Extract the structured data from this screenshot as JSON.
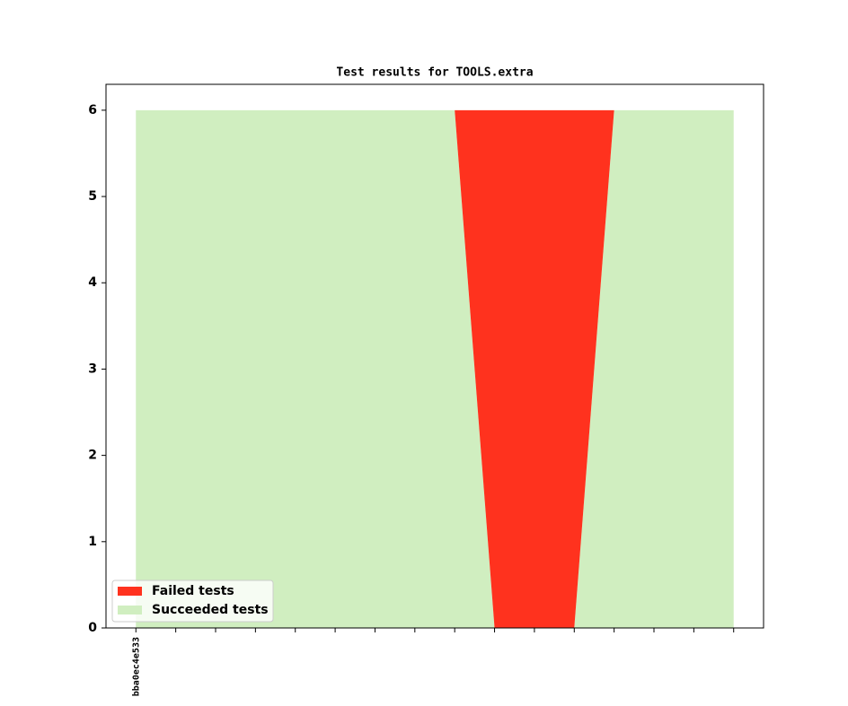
{
  "chart_data": {
    "type": "stacked_area",
    "title": "Test results for TOOLS.extra",
    "categories": [
      "bba0ec4e533",
      null,
      null,
      null,
      null,
      null,
      null,
      null,
      null,
      null,
      null,
      null,
      null,
      null,
      null,
      null
    ],
    "series": [
      {
        "name": "Failed tests",
        "color": "#ff321e",
        "values": [
          0,
          0,
          0,
          0,
          0,
          0,
          0,
          0,
          0,
          6,
          6,
          6,
          0,
          0,
          0,
          0
        ]
      },
      {
        "name": "Succeeded tests",
        "color": "#d0eec0",
        "values": [
          6,
          6,
          6,
          6,
          6,
          6,
          6,
          6,
          6,
          0,
          0,
          0,
          6,
          6,
          6,
          6
        ]
      }
    ],
    "ylim": [
      0,
      6.3
    ],
    "yticks": [
      0,
      1,
      2,
      3,
      4,
      5,
      6
    ],
    "legend": "lower left"
  }
}
